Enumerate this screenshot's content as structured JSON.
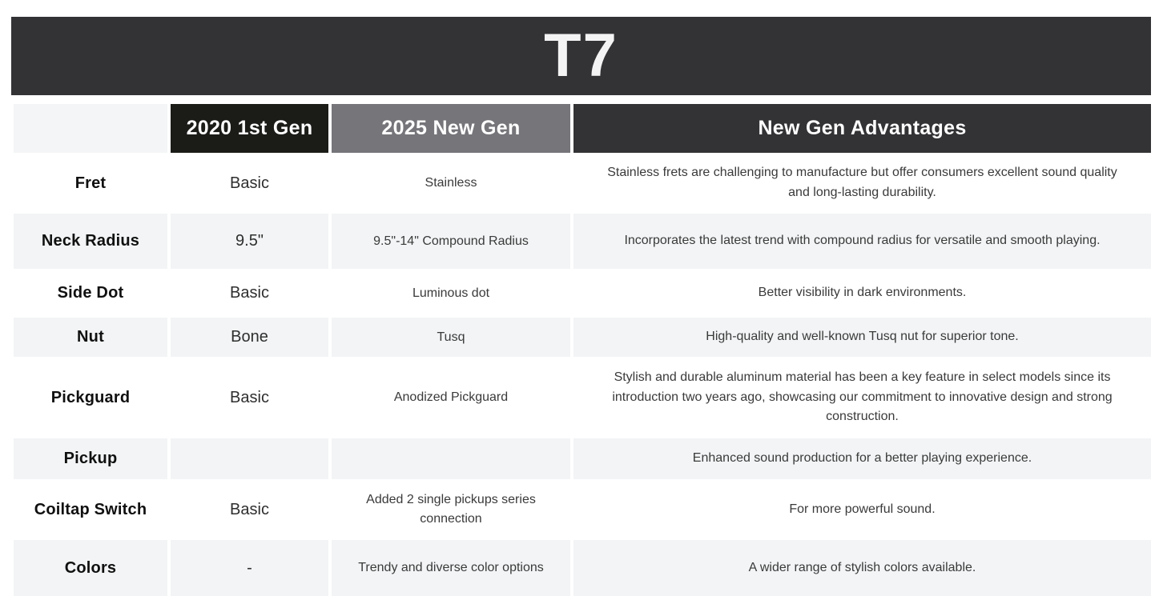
{
  "title": "T7",
  "colors": {
    "title_bar_bg": "#333336",
    "header_2020_bg": "#1b1b18",
    "header_2025_bg": "#75757a",
    "header_advantages_bg": "#333336",
    "striped_row_bg": "#f2f4f5",
    "header_text": "#ffffff",
    "body_text": "#3a3a3a"
  },
  "table": {
    "columns": [
      {
        "label": ""
      },
      {
        "label": "2020 1st Gen"
      },
      {
        "label": "2025 New Gen"
      },
      {
        "label": "New Gen Advantages"
      }
    ],
    "rows": [
      {
        "feature": "Fret",
        "gen2020": "Basic",
        "gen2025": "Stainless",
        "advantage": "Stainless frets are challenging to manufacture but offer consumers excellent sound quality and long-lasting durability."
      },
      {
        "feature": "Neck Radius",
        "gen2020": "9.5\"",
        "gen2025": "9.5\"-14\" Compound Radius",
        "advantage": "Incorporates the latest trend with compound radius for versatile and smooth playing."
      },
      {
        "feature": "Side Dot",
        "gen2020": "Basic",
        "gen2025": "Luminous dot",
        "advantage": "Better visibility in dark environments."
      },
      {
        "feature": "Nut",
        "gen2020": "Bone",
        "gen2025": "Tusq",
        "advantage": "High-quality and well-known Tusq nut for superior tone."
      },
      {
        "feature": "Pickguard",
        "gen2020": "Basic",
        "gen2025": "Anodized Pickguard",
        "advantage": "Stylish and durable aluminum material has been a key feature in select models since its introduction two years ago, showcasing our commitment to innovative design and strong construction."
      },
      {
        "feature": "Pickup",
        "gen2020": "",
        "gen2025": "",
        "advantage": "Enhanced sound production for a better playing experience."
      },
      {
        "feature": "Coiltap Switch",
        "gen2020": "Basic",
        "gen2025": "Added 2 single pickups series connection",
        "advantage": "For more powerful sound."
      },
      {
        "feature": "Colors",
        "gen2020": "-",
        "gen2025": "Trendy and diverse color options",
        "advantage": "A wider range of stylish colors available."
      }
    ]
  }
}
